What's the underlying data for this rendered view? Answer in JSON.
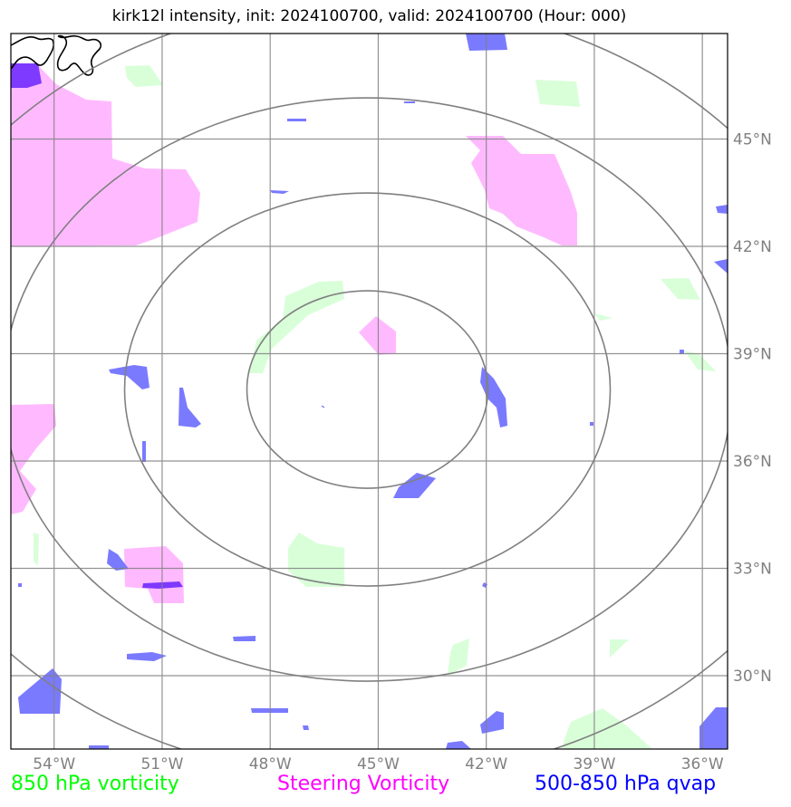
{
  "title": "kirk12l intensity, init: 2024100700, valid: 2024100700 (Hour: 000)",
  "map": {
    "lon_ticks": [
      "54°W",
      "51°W",
      "48°W",
      "45°W",
      "42°W",
      "39°W",
      "36°W"
    ],
    "lat_ticks": [
      "45°N",
      "42°N",
      "39°N",
      "36°N",
      "33°N",
      "30°N"
    ],
    "lon_values": [
      -54,
      -51,
      -48,
      -45,
      -42,
      -39,
      -36
    ],
    "lat_values": [
      45,
      42,
      39,
      36,
      33,
      30
    ],
    "extent": {
      "lon": [
        -55.2,
        -35.3
      ],
      "lat": [
        27.95,
        47.95
      ]
    },
    "center": {
      "lon": -45.3,
      "lat": 38.0
    },
    "rings_count": 4
  },
  "legend": {
    "vort850": "850 hPa vorticity",
    "steering": "Steering Vorticity",
    "qvap": "500-850 hPa qvap"
  },
  "colors": {
    "vort850": "#ccffcc",
    "steering": "#ffb3ff",
    "qvap": "#7373ff",
    "qvap_dark": "#7733ff",
    "grid": "#808080",
    "coast": "#000000"
  }
}
